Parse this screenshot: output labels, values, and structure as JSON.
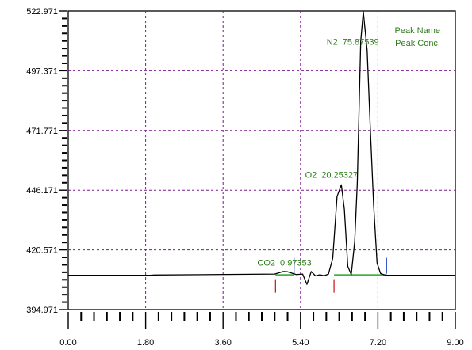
{
  "chart_data": {
    "type": "line",
    "x_ticks": [
      "0.00",
      "1.80",
      "3.60",
      "5.40",
      "7.20",
      "9.00"
    ],
    "y_ticks": [
      "394.971",
      "420.571",
      "446.171",
      "471.771",
      "497.371",
      "522.971"
    ],
    "xlim": [
      0,
      9
    ],
    "ylim": [
      394.971,
      522.971
    ],
    "grid": true,
    "legend": {
      "position": "top-right",
      "entries": [
        "Peak Name",
        "Peak Conc."
      ]
    },
    "baseline": 409.7,
    "series": [
      {
        "x": [
          0.0,
          1.9,
          2.0,
          4.8,
          5.0,
          5.1,
          5.3,
          5.45,
          5.55,
          5.65,
          5.75,
          5.85,
          5.95,
          6.05,
          6.15,
          6.25,
          6.35,
          6.42,
          6.5,
          6.58,
          6.66,
          6.72,
          6.8,
          6.86,
          6.95,
          7.02,
          7.1,
          7.18,
          7.26,
          7.34,
          7.42,
          9.0
        ],
        "y": [
          409.7,
          409.7,
          409.8,
          410.2,
          411.3,
          411.2,
          410.0,
          410.2,
          405.8,
          411.3,
          409.4,
          409.9,
          409.5,
          410.2,
          417.0,
          443.5,
          448.5,
          438.0,
          413.5,
          410.0,
          424.0,
          449.0,
          510.0,
          522.7,
          506.0,
          474.0,
          440.0,
          415.0,
          410.5,
          409.9,
          409.7,
          409.7
        ]
      }
    ],
    "peak_labels": [
      {
        "name": "CO2",
        "conc": "0.97353",
        "x": 4.95,
        "y": 413.8
      },
      {
        "name": "O2",
        "conc": "20.25327",
        "x": 6.06,
        "y": 451.5
      },
      {
        "name": "N2",
        "conc": "75.87539",
        "x": 6.56,
        "y": 508.5
      }
    ],
    "integration_markers": [
      {
        "x": 4.82,
        "color": "#cc2222"
      },
      {
        "x": 5.25,
        "color": "#2244cc"
      },
      {
        "x": 6.18,
        "color": "#cc2222"
      },
      {
        "x": 7.4,
        "color": "#2244cc"
      }
    ],
    "colors": {
      "trace": "#000000",
      "grid": "#7a1a8c",
      "baseline_fit": "#22aa22",
      "label": "#2e7d1a"
    }
  }
}
